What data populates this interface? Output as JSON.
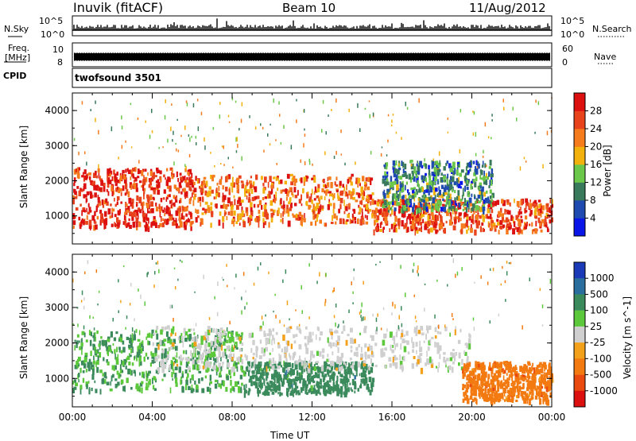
{
  "header": {
    "station": "Inuvik (fitACF)",
    "beam": "Beam 10",
    "date": "11/Aug/2012"
  },
  "strips": {
    "nsky_label": "N.Sky",
    "nsky_ticks": [
      "10^5",
      "10^0"
    ],
    "nsearch_label": "N.Search",
    "freq_label_1": "Freq.",
    "freq_label_2": "[MHz]",
    "freq_ticks": [
      "10",
      "8"
    ],
    "nave_label": "Nave",
    "nave_ticks": [
      "60",
      "0"
    ],
    "cpid_label": "CPID",
    "cpid_value": "twofsound 3501"
  },
  "chart_data": [
    {
      "type": "heatmap",
      "title": "",
      "xlabel": "",
      "ylabel": "Slant Range [km]",
      "x_ticks": [
        "00:00",
        "04:00",
        "08:00",
        "12:00",
        "16:00",
        "20:00",
        "00:00"
      ],
      "y_ticks": [
        "1000",
        "2000",
        "3000",
        "4000"
      ],
      "ylim": [
        200,
        4500
      ],
      "xlim_hours": [
        0,
        24
      ],
      "colorbar": {
        "label": "Power [dB]",
        "ticks": [
          "4",
          "8",
          "12",
          "16",
          "20",
          "24",
          "28"
        ],
        "colors": [
          "#0a16e8",
          "#1f4bb0",
          "#3a7a5c",
          "#6cc84a",
          "#f2b10c",
          "#f57b1d",
          "#e8431c",
          "#dd1010"
        ]
      },
      "approx_bands": [
        {
          "t0": 0.0,
          "t1": 6.0,
          "r0": 700,
          "r1": 2400,
          "value": 28
        },
        {
          "t0": 6.0,
          "t1": 15.0,
          "r0": 800,
          "r1": 2200,
          "value": 24
        },
        {
          "t0": 15.0,
          "t1": 24.0,
          "r0": 600,
          "r1": 1500,
          "value": 26
        },
        {
          "t0": 15.5,
          "t1": 21.0,
          "r0": 1200,
          "r1": 2600,
          "value": 10
        }
      ]
    },
    {
      "type": "heatmap",
      "title": "",
      "xlabel": "Time UT",
      "ylabel": "Slant Range [km]",
      "x_ticks": [
        "00:00",
        "04:00",
        "08:00",
        "12:00",
        "16:00",
        "20:00",
        "00:00"
      ],
      "y_ticks": [
        "1000",
        "2000",
        "3000",
        "4000"
      ],
      "ylim": [
        200,
        4500
      ],
      "xlim_hours": [
        0,
        24
      ],
      "colorbar": {
        "label": "Velocity [m s^-1]",
        "ticks": [
          "1000",
          "500",
          "100",
          "25",
          "-25",
          "-100",
          "-500",
          "-1000"
        ],
        "colors": [
          "#1a3ab8",
          "#2a6e9e",
          "#3a8a5c",
          "#5cc83c",
          "#cfcfcf",
          "#f3a01a",
          "#f37a10",
          "#ea4a10",
          "#dd1010"
        ]
      },
      "approx_bands": [
        {
          "t0": 0.0,
          "t1": 8.5,
          "r0": 700,
          "r1": 2400,
          "value": 100
        },
        {
          "t0": 8.5,
          "t1": 15.0,
          "r0": 600,
          "r1": 1500,
          "value": 300
        },
        {
          "t0": 4.0,
          "t1": 20.0,
          "r0": 1300,
          "r1": 2500,
          "value": 0
        },
        {
          "t0": 19.5,
          "t1": 24.0,
          "r0": 400,
          "r1": 1500,
          "value": -300
        }
      ]
    }
  ]
}
